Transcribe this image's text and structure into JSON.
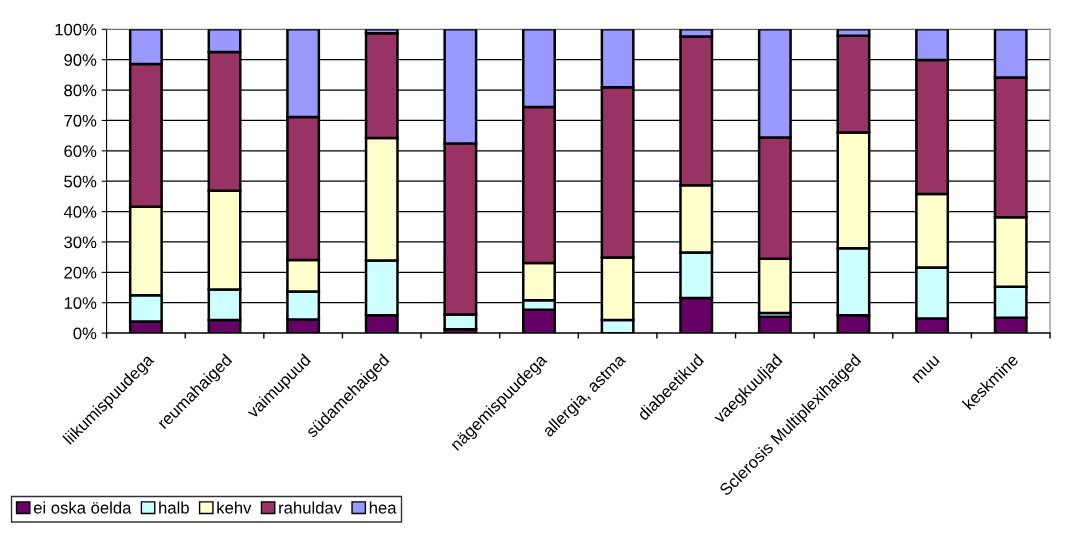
{
  "chart_data": {
    "type": "bar",
    "stacked": true,
    "categories": [
      "liikumispuudega",
      "reumahaiged",
      "vaimupuud",
      "südamehaiged",
      null,
      "nägemispuudega",
      "allergia, astma",
      "diabeetikud",
      "vaegkuuljad",
      "Sclerosis Multiplexihaiged",
      "muu",
      "keskmine"
    ],
    "series": [
      {
        "name": "ei oska öelda",
        "color": "#660066",
        "values": [
          3.8,
          4.3,
          4.5,
          5.9,
          1.3,
          7.7,
          0,
          11.6,
          5.4,
          5.9,
          4.8,
          5.1
        ]
      },
      {
        "name": "halb",
        "color": "#ccffff",
        "values": [
          8.7,
          10.1,
          9.2,
          18.0,
          4.8,
          3.1,
          4.3,
          14.9,
          1.2,
          22.0,
          16.8,
          10.2
        ]
      },
      {
        "name": "kehv",
        "color": "#ffffcc",
        "values": [
          29.1,
          32.5,
          10.4,
          40.3,
          0,
          12.3,
          20.6,
          22.2,
          17.9,
          38.1,
          24.2,
          22.8
        ]
      },
      {
        "name": "rahuldav",
        "color": "#993366",
        "values": [
          47.0,
          45.6,
          47.0,
          34.5,
          56.3,
          51.3,
          56.0,
          48.9,
          39.9,
          31.9,
          44.1,
          46.0
        ]
      },
      {
        "name": "hea",
        "color": "#9999ff",
        "values": [
          11.4,
          7.5,
          28.9,
          1.3,
          37.6,
          25.6,
          19.1,
          2.4,
          35.6,
          2.1,
          10.1,
          15.9
        ]
      }
    ],
    "ylim": [
      0,
      100
    ],
    "yticks": [
      {
        "value": 0,
        "label": "0%"
      },
      {
        "value": 10,
        "label": "10%"
      },
      {
        "value": 20,
        "label": "20%"
      },
      {
        "value": 30,
        "label": "30%"
      },
      {
        "value": 40,
        "label": "40%"
      },
      {
        "value": 50,
        "label": "50%"
      },
      {
        "value": 60,
        "label": "60%"
      },
      {
        "value": 70,
        "label": "70%"
      },
      {
        "value": 80,
        "label": "80%"
      },
      {
        "value": 90,
        "label": "90%"
      },
      {
        "value": 100,
        "label": "100%"
      }
    ],
    "grid": "y",
    "legend": "bottom left"
  }
}
